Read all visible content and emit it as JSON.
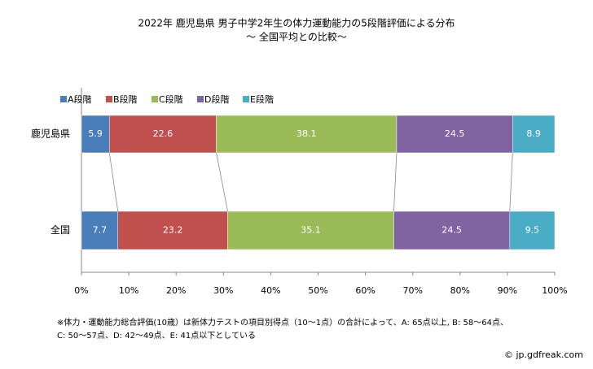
{
  "chart_data": {
    "type": "stacked-barh",
    "title": "2022年 鹿児島県 男子中学2年生の体力運動能力の5段階評価による分布",
    "subtitle": "～ 全国平均との比較～",
    "categories": [
      "鹿児島県",
      "全国"
    ],
    "series": [
      {
        "name": "A段階",
        "color": "#4a7ebb",
        "values": [
          5.9,
          7.7
        ]
      },
      {
        "name": "B段階",
        "color": "#c0504d",
        "values": [
          22.6,
          23.2
        ]
      },
      {
        "name": "C段階",
        "color": "#9bbb59",
        "values": [
          38.1,
          35.1
        ]
      },
      {
        "name": "D段階",
        "color": "#8064a2",
        "values": [
          24.5,
          24.5
        ]
      },
      {
        "name": "E段階",
        "color": "#4bacc6",
        "values": [
          8.9,
          9.5
        ]
      }
    ],
    "xlim": [
      0,
      100
    ],
    "xticks": [
      {
        "value": 0,
        "label": "0%"
      },
      {
        "value": 10,
        "label": "10%"
      },
      {
        "value": 20,
        "label": "20%"
      },
      {
        "value": 30,
        "label": "30%"
      },
      {
        "value": 40,
        "label": "40%"
      },
      {
        "value": 50,
        "label": "50%"
      },
      {
        "value": 60,
        "label": "60%"
      },
      {
        "value": 70,
        "label": "70%"
      },
      {
        "value": 80,
        "label": "80%"
      },
      {
        "value": 90,
        "label": "90%"
      },
      {
        "value": 100,
        "label": "100%"
      }
    ],
    "notes": [
      "※体力・運動能力総合評価(10歳）は新体力テストの項目別得点（10～1点）の合計によって、A: 65点以上, B: 58～64点、",
      "C: 50～57点、D: 42～49点、E: 41点以下としている"
    ],
    "source": "© jp.gdfreak.com"
  }
}
